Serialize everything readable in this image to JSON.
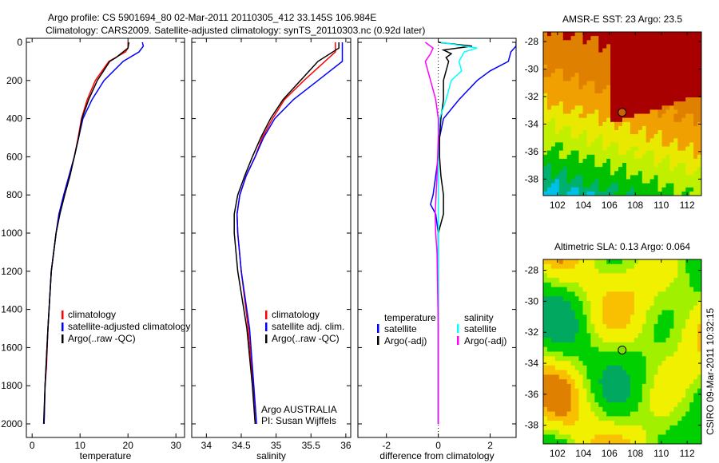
{
  "chart_data": [
    {
      "type": "line",
      "title": "Argo profile: CS 5901694_80 02-Mar-2011 20110305_412 33.145S 106.984E",
      "subtitle": "Climatology: CARS2009. Satellite-adjusted climatology: synTS_20110303.nc (0.92d later)",
      "xlabel": "temperature",
      "ylabel": "",
      "xlim": [
        -1.2,
        31.8
      ],
      "ylim": [
        2000,
        0
      ],
      "xticks": [
        "0",
        "10",
        "20",
        "30"
      ],
      "yticks": [
        "0",
        "200",
        "400",
        "600",
        "800",
        "1000",
        "1200",
        "1400",
        "1600",
        "1800",
        "2000"
      ],
      "legend": [
        "climatology",
        "satellite-adjusted climatology",
        "Argo(..raw -QC)"
      ],
      "series": [
        {
          "name": "climatology",
          "color": "#ff0000",
          "depth": [
            0,
            30,
            50,
            100,
            200,
            300,
            400,
            500,
            600,
            700,
            800,
            900,
            1000,
            1200,
            1500,
            1700,
            1800,
            2000
          ],
          "values": [
            20,
            20,
            19.5,
            16,
            13.2,
            11.5,
            10.3,
            9.6,
            8.8,
            7.7,
            6.6,
            5.6,
            5,
            4,
            3.3,
            3,
            2.7,
            2.5
          ]
        },
        {
          "name": "satellite-adjusted climatology",
          "color": "#0000ff",
          "depth": [
            0,
            20,
            50,
            100,
            200,
            300,
            400,
            500,
            600,
            700,
            800,
            900,
            1000,
            1200,
            1500,
            1800,
            2000
          ],
          "values": [
            23,
            23.2,
            22.3,
            19,
            15,
            12.5,
            10.6,
            9.7,
            8.8,
            7.7,
            6.6,
            5.6,
            5,
            4,
            3.3,
            2.7,
            2.5
          ]
        },
        {
          "name": "Argo(..raw -QC)",
          "color": "#000000",
          "depth": [
            0,
            30,
            50,
            80,
            100,
            200,
            300,
            400,
            500,
            600,
            700,
            800,
            900,
            1000,
            1200,
            1500,
            1800,
            2000
          ],
          "values": [
            20.2,
            20,
            19,
            17.5,
            16.2,
            13.6,
            11.8,
            10.4,
            9.7,
            8.8,
            7.9,
            6.8,
            5.8,
            5,
            4,
            3.3,
            2.7,
            2.4
          ]
        }
      ]
    },
    {
      "type": "line",
      "xlabel": "salinity",
      "xlim": [
        33.79,
        36.07
      ],
      "ylim": [
        2000,
        0
      ],
      "xticks": [
        "34",
        "34.5",
        "35",
        "35.5",
        "36"
      ],
      "legend": [
        "climatology",
        "satellite adj. clim.",
        "Argo(..raw -QC)"
      ],
      "annotation": [
        "Argo AUSTRALIA",
        "PI: Susan Wijffels"
      ],
      "series": [
        {
          "name": "climatology",
          "color": "#ff0000",
          "depth": [
            0,
            50,
            100,
            200,
            300,
            400,
            500,
            600,
            700,
            800,
            900,
            1000,
            1200,
            1500,
            1800,
            2000
          ],
          "values": [
            35.85,
            35.85,
            35.7,
            35.4,
            35.12,
            34.95,
            34.8,
            34.7,
            34.57,
            34.48,
            34.44,
            34.45,
            34.5,
            34.6,
            34.67,
            34.7
          ]
        },
        {
          "name": "satellite adj. clim.",
          "color": "#0000ff",
          "depth": [
            0,
            30,
            100,
            200,
            300,
            400,
            500,
            600,
            700,
            800,
            900,
            1000,
            1200,
            1500,
            1800,
            2000
          ],
          "values": [
            35.95,
            35.95,
            35.95,
            35.6,
            35.25,
            34.98,
            34.82,
            34.7,
            34.57,
            34.48,
            34.44,
            34.45,
            34.5,
            34.62,
            34.68,
            34.72
          ]
        },
        {
          "name": "Argo(..raw -QC)",
          "color": "#000000",
          "depth": [
            0,
            30,
            100,
            200,
            300,
            400,
            500,
            600,
            700,
            800,
            900,
            1000,
            1200,
            1500,
            1800,
            2000
          ],
          "values": [
            35.9,
            35.9,
            35.6,
            35.35,
            35.1,
            34.92,
            34.78,
            34.66,
            34.55,
            34.45,
            34.4,
            34.4,
            34.45,
            34.58,
            34.66,
            34.7
          ]
        }
      ]
    },
    {
      "type": "line",
      "xlabel": "difference from climatology",
      "xlim": [
        -3.1,
        3
      ],
      "ylim": [
        2000,
        0
      ],
      "xticks": [
        "-2",
        "0",
        "2"
      ],
      "legend_groups": [
        {
          "title": "temperature",
          "items": [
            "satellite",
            "Argo(-adj)"
          ]
        },
        {
          "title": "salinity",
          "items": [
            "satellite",
            "Argo(-adj)"
          ]
        }
      ],
      "series": [
        {
          "name": "temperature satellite",
          "color": "#0000ff",
          "depth": [
            0,
            20,
            50,
            100,
            150,
            200,
            300,
            400,
            500,
            600,
            700,
            800,
            850,
            900,
            950,
            1000,
            1200,
            2000
          ],
          "values": [
            3,
            3,
            2.8,
            2.7,
            2,
            1.5,
            0.8,
            0.2,
            0.05,
            0,
            -0.1,
            -0.2,
            -0.3,
            -0.1,
            -0.05,
            0,
            0,
            0
          ]
        },
        {
          "name": "temperature Argo(-adj)",
          "color": "#000000",
          "depth": [
            0,
            20,
            40,
            60,
            80,
            100,
            200,
            300,
            400,
            500,
            600,
            700,
            800,
            900,
            950,
            1000,
            1200,
            2000
          ],
          "values": [
            0,
            1.3,
            0.2,
            0.5,
            0.3,
            0.4,
            0.2,
            0.2,
            0.1,
            0.05,
            0.05,
            0.1,
            0.2,
            0.2,
            0.1,
            0,
            0,
            0
          ]
        },
        {
          "name": "salinity satellite",
          "color": "#00ffff",
          "depth": [
            0,
            30,
            50,
            100,
            150,
            200,
            300,
            400,
            500,
            1000,
            2000
          ],
          "values": [
            0.1,
            1.5,
            1,
            0.8,
            0.9,
            0.5,
            0.3,
            0.05,
            0,
            0,
            0
          ]
        },
        {
          "name": "salinity Argo(-adj)",
          "color": "#ff00ff",
          "depth": [
            0,
            30,
            60,
            100,
            150,
            200,
            300,
            400,
            500,
            700,
            900,
            1000,
            1100,
            1500,
            2000
          ],
          "values": [
            -0.5,
            -0.2,
            -0.3,
            -0.5,
            -0.4,
            -0.3,
            -0.1,
            0,
            0,
            -0.05,
            -0.12,
            -0.1,
            -0.05,
            0,
            0
          ]
        }
      ]
    },
    {
      "type": "heatmap",
      "title": "AMSR-E SST: 23 Argo: 23.5",
      "xticks": [
        "102",
        "104",
        "106",
        "108",
        "110",
        "112"
      ],
      "yticks": [
        "-28",
        "-30",
        "-32",
        "-34",
        "-36",
        "-38"
      ],
      "xlim": [
        100.9,
        113.1
      ],
      "ylim": [
        -39.2,
        -27.3
      ],
      "marker": {
        "lon": 106.984,
        "lat": -33.145
      }
    },
    {
      "type": "heatmap",
      "title": "Altimetric SLA: 0.13 Argo: 0.064",
      "xticks": [
        "102",
        "104",
        "106",
        "108",
        "110",
        "112"
      ],
      "yticks": [
        "-28",
        "-30",
        "-32",
        "-34",
        "-36",
        "-38"
      ],
      "xlim": [
        100.9,
        113.1
      ],
      "ylim": [
        -39.2,
        -27.3
      ],
      "marker": {
        "lon": 106.984,
        "lat": -33.145
      }
    }
  ],
  "footer": "CSIRO 09-Mar-2011 10:32:15"
}
